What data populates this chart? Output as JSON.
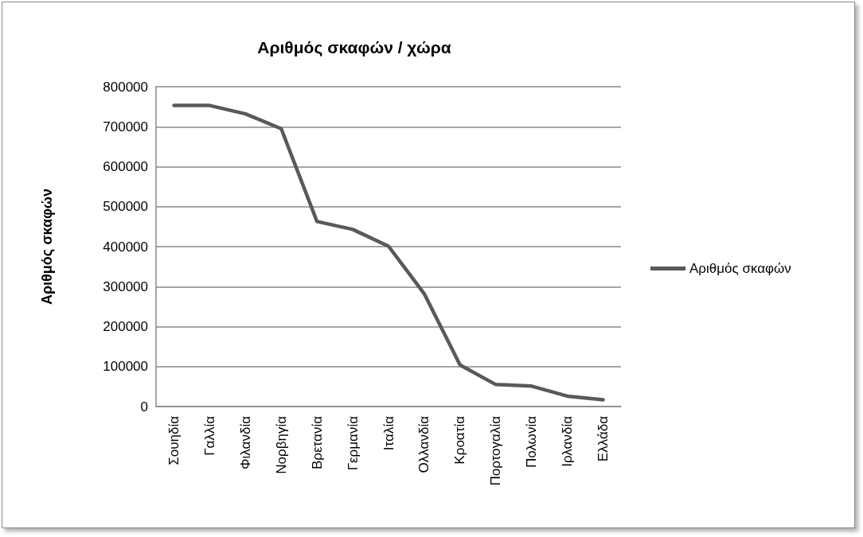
{
  "chart_data": {
    "type": "line",
    "title": "Αριθμός σκαφών / χώρα",
    "ylabel": "Αριθμός σκαφών",
    "categories": [
      "Σουηδία",
      "Γαλλία",
      "Φιλανδία",
      "Νορβηγία",
      "Βρετανία",
      "Γερμανία",
      "Ιταλία",
      "Ολλανδία",
      "Κροατία",
      "Πορτογαλία",
      "Πολωνία",
      "Ιρλανδία",
      "Ελλάδα"
    ],
    "series": [
      {
        "name": "Αριθμός σκαφών",
        "color": "#595959",
        "values": [
          753000,
          753000,
          732000,
          695000,
          463000,
          443000,
          401000,
          282000,
          104000,
          55000,
          51000,
          26000,
          17000
        ]
      }
    ],
    "ylim": [
      0,
      800000
    ],
    "yticks": [
      0,
      100000,
      200000,
      300000,
      400000,
      500000,
      600000,
      700000,
      800000
    ],
    "grid": "y",
    "legend": "right"
  }
}
